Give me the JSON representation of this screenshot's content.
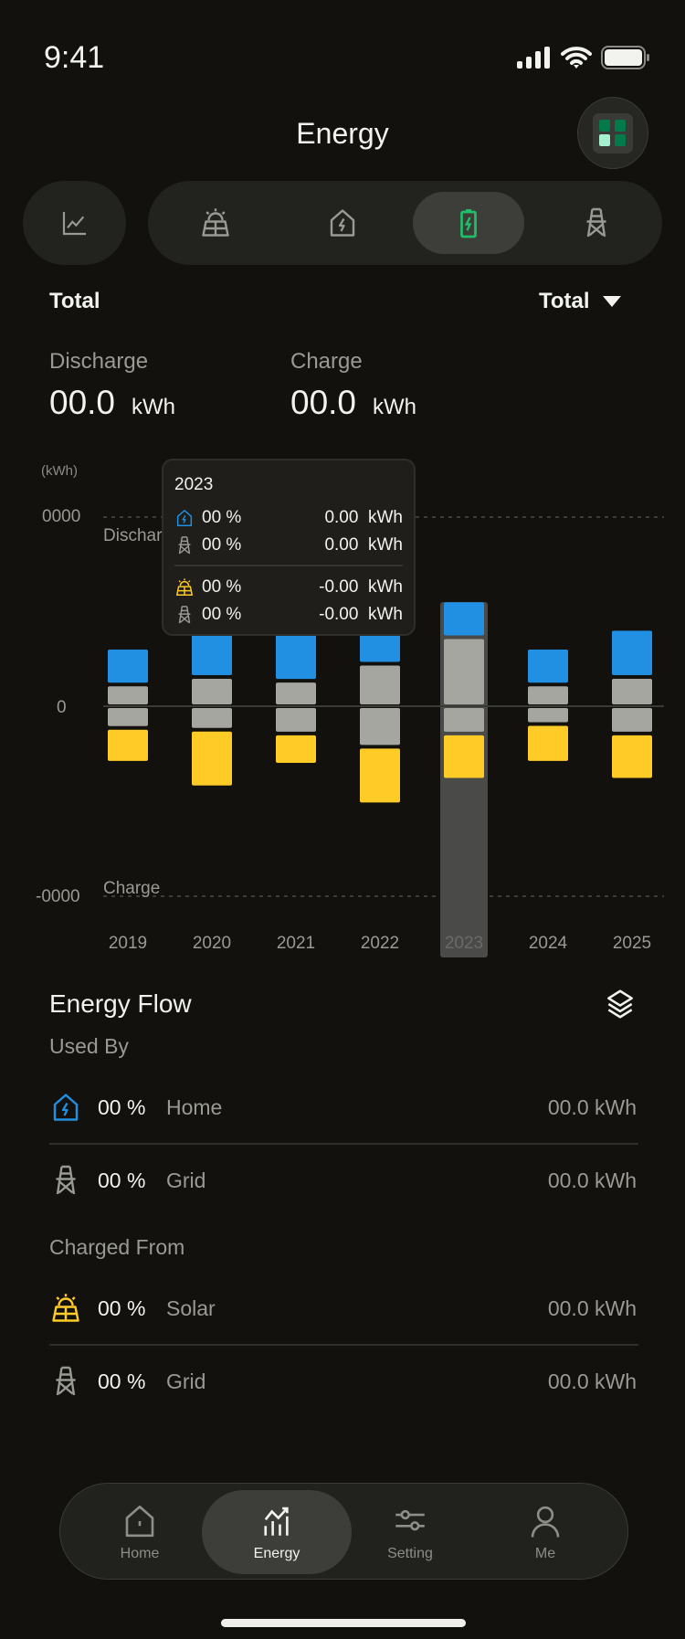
{
  "status": {
    "time": "9:41"
  },
  "header": {
    "title": "Energy"
  },
  "filters": {
    "period_label": "Total",
    "period_select": "Total"
  },
  "summary": {
    "discharge_label": "Discharge",
    "discharge_value": "00.0",
    "charge_label": "Charge",
    "charge_value": "00.0",
    "unit": "kWh"
  },
  "colors": {
    "home": "#2190e3",
    "grid": "#a6a6a1",
    "solar": "#ffcb27",
    "accent": "#1fbf6a"
  },
  "chart_data": {
    "type": "bar",
    "stacked": true,
    "unit_label": "(kWh)",
    "y_ticks": [
      "0000",
      "0",
      "-0000"
    ],
    "annotations": [
      "Discharge",
      "Charge"
    ],
    "categories": [
      "2019",
      "2020",
      "2021",
      "2022",
      "2023",
      "2024",
      "2025"
    ],
    "ylim": [
      -100,
      100
    ],
    "selected": "2023",
    "series": [
      {
        "name": "Grid (discharge)",
        "color": "grid",
        "values": [
          10,
          14,
          12,
          21,
          35,
          10,
          14
        ]
      },
      {
        "name": "Home",
        "color": "home",
        "values": [
          18,
          25,
          25,
          16,
          18,
          18,
          24
        ]
      },
      {
        "name": "Grid (charge)",
        "color": "grid",
        "values": [
          -10,
          -11,
          -13,
          -20,
          -13,
          -8,
          -13
        ]
      },
      {
        "name": "Solar",
        "color": "solar",
        "values": [
          -17,
          -29,
          -15,
          -29,
          -23,
          -19,
          -23
        ]
      }
    ]
  },
  "tooltip": {
    "year": "2023",
    "rows": [
      {
        "icon": "house-bolt-icon",
        "pct": "00 %",
        "value": "0.00  kWh"
      },
      {
        "icon": "grid-tower-icon",
        "pct": "00 %",
        "value": "0.00  kWh"
      },
      {
        "icon": "solar-icon",
        "pct": "00 %",
        "value": "-0.00  kWh"
      },
      {
        "icon": "grid-tower-icon",
        "pct": "00 %",
        "value": "-0.00  kWh"
      }
    ]
  },
  "energy_flow": {
    "title": "Energy Flow",
    "used_by": "Used By",
    "charged_from": "Charged From",
    "used": [
      {
        "pct": "00 %",
        "name": "Home",
        "value": "00.0 kWh"
      },
      {
        "pct": "00 %",
        "name": "Grid",
        "value": "00.0 kWh"
      }
    ],
    "charged": [
      {
        "pct": "00 %",
        "name": "Solar",
        "value": "00.0 kWh"
      },
      {
        "pct": "00 %",
        "name": "Grid",
        "value": "00.0 kWh"
      }
    ]
  },
  "tabbar": {
    "home": "Home",
    "energy": "Energy",
    "setting": "Setting",
    "me": "Me"
  }
}
